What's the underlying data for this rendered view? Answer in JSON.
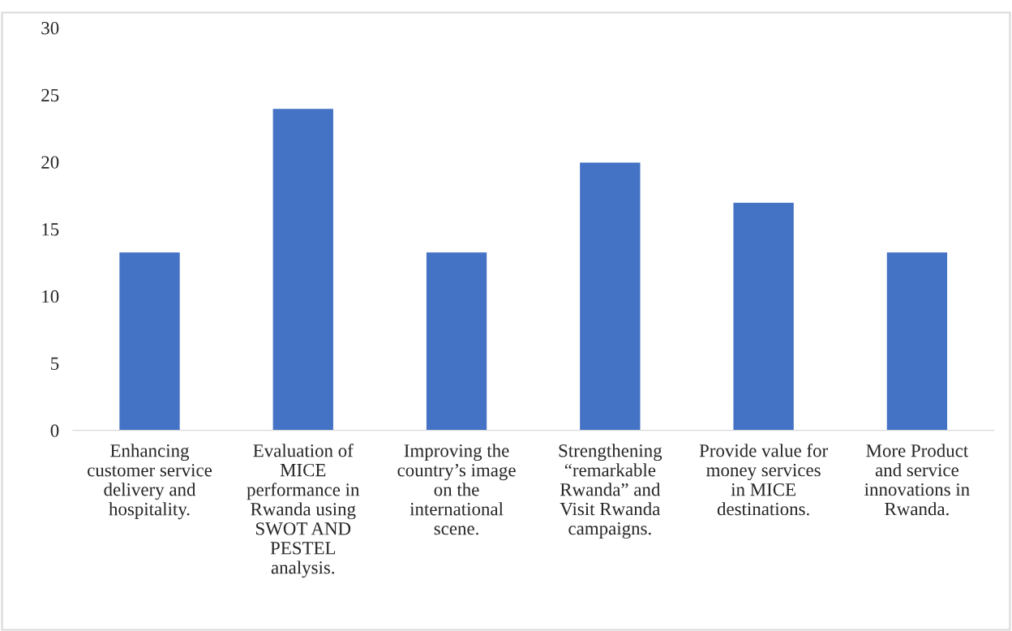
{
  "chart_data": {
    "type": "bar",
    "categories": [
      "Enhancing\ncustomer service\ndelivery and\nhospitality.",
      "Evaluation of\nMICE\nperformance in\nRwanda using\nSWOT AND\nPESTEL\nanalysis.",
      "Improving the\ncountry’s image\non the\ninternational\nscene.",
      "Strengthening\n“remarkable\nRwanda” and\nVisit Rwanda\ncampaigns.",
      "Provide value for\nmoney services\nin MICE\ndestinations.",
      "More Product\nand service\ninnovations in\nRwanda."
    ],
    "values": [
      13.3,
      24,
      13.3,
      20,
      17,
      13.3
    ],
    "color": "#4472c4",
    "ylim": [
      0,
      30
    ],
    "yticks": [
      0,
      5,
      10,
      15,
      20,
      25,
      30
    ],
    "grid": false,
    "legend": false
  }
}
